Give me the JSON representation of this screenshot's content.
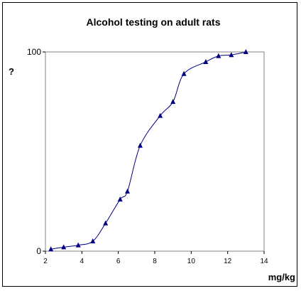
{
  "chart_data": {
    "type": "line",
    "title": "Alcohol testing on adult rats",
    "xlabel": "mg/kg",
    "ylabel": "?",
    "xlim": [
      2,
      14
    ],
    "ylim": [
      0,
      100
    ],
    "x_ticks": [
      "2",
      "4",
      "6",
      "8",
      "10",
      "12",
      "14"
    ],
    "y_ticks": [
      "0",
      "100"
    ],
    "grid": false,
    "legend": "none",
    "smooth": true,
    "marker": "triangle",
    "color": "#000080",
    "series": [
      {
        "x": [
          2.3,
          3.0,
          3.8,
          4.6,
          5.3,
          6.1,
          6.5,
          7.2,
          8.3,
          9.0,
          9.6,
          10.8,
          11.5,
          12.2,
          13.0
        ],
        "y": [
          1,
          2,
          3,
          5,
          14,
          26,
          30,
          53,
          68,
          75,
          89,
          95,
          98,
          98.5,
          100
        ]
      }
    ]
  }
}
